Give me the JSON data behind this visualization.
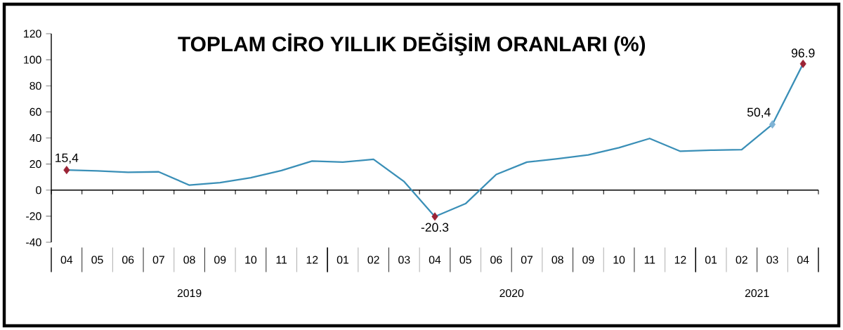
{
  "chart_data": {
    "type": "line",
    "title": "TOPLAM CİRO YILLIK DEĞİŞİM ORANLARI (%)",
    "categories": [
      "04",
      "05",
      "06",
      "07",
      "08",
      "09",
      "10",
      "11",
      "12",
      "01",
      "02",
      "03",
      "04",
      "05",
      "06",
      "07",
      "08",
      "09",
      "10",
      "11",
      "12",
      "01",
      "02",
      "03",
      "04"
    ],
    "series": [
      {
        "color": "#3a8fb7",
        "values": [
          15.4,
          14.7,
          13.7,
          14,
          3.8,
          5.7,
          9.5,
          15,
          22.3,
          21.5,
          23.6,
          6.5,
          -20.3,
          -10.4,
          12,
          21.5,
          24,
          27,
          32.5,
          39.6,
          29.8,
          30.6,
          31,
          50.4,
          96.9
        ]
      },
      {
        "type": "scatter",
        "marker": "diamond",
        "values": [
          15.4,
          null,
          null,
          null,
          null,
          null,
          null,
          null,
          null,
          null,
          null,
          null,
          -20.3,
          null,
          null,
          null,
          null,
          null,
          null,
          null,
          null,
          null,
          null,
          50.4,
          96.9
        ],
        "colors": [
          "#9b2335",
          null,
          null,
          null,
          null,
          null,
          null,
          null,
          null,
          null,
          null,
          null,
          "#9b2335",
          null,
          null,
          null,
          null,
          null,
          null,
          null,
          null,
          null,
          null,
          "#7fb3d5",
          "#9b2335"
        ],
        "value_labels": [
          "15,4",
          null,
          null,
          null,
          null,
          null,
          null,
          null,
          null,
          null,
          null,
          null,
          "-20.3",
          null,
          null,
          null,
          null,
          null,
          null,
          null,
          null,
          null,
          null,
          "50,4",
          "96.9"
        ]
      }
    ],
    "annotations": [
      "2019",
      "2020",
      "2021"
    ],
    "ylim": [
      -40,
      120
    ],
    "yticks": [
      -40,
      -20,
      0,
      20,
      40,
      60,
      80,
      100,
      120
    ]
  }
}
